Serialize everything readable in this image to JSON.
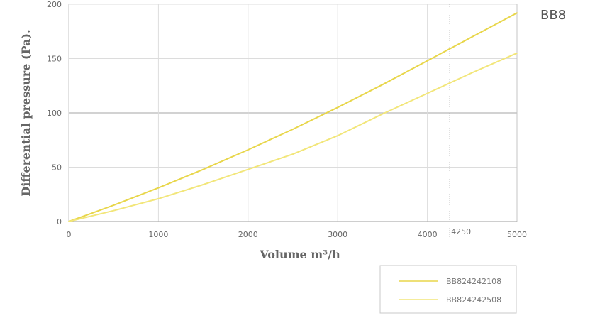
{
  "corner_label": "BB8",
  "chart_data": {
    "type": "line",
    "title": "",
    "xlabel": "Volume m³/h",
    "ylabel": "Differential pressure (Pa).",
    "xlim": [
      0,
      5000
    ],
    "ylim": [
      0,
      200
    ],
    "xticks": [
      0,
      1000,
      2000,
      3000,
      4000,
      5000
    ],
    "yticks": [
      0,
      50,
      100,
      150,
      200
    ],
    "grid": true,
    "reference_line": {
      "x": 4250,
      "label": "4250",
      "style": "dotted"
    },
    "legend_position": "bottom-right",
    "series": [
      {
        "name": "BB824242108",
        "color": "#e8d64a",
        "x": [
          0,
          500,
          1000,
          1500,
          2000,
          2500,
          3000,
          3500,
          4000,
          4500,
          5000
        ],
        "y": [
          0,
          15,
          31,
          48,
          66,
          85,
          105,
          126,
          148,
          170,
          192
        ]
      },
      {
        "name": "BB824242508",
        "color": "#f2e67a",
        "x": [
          0,
          500,
          1000,
          1500,
          2000,
          2500,
          3000,
          3500,
          4000,
          4500,
          5000
        ],
        "y": [
          0,
          10,
          21,
          34,
          48,
          62,
          79,
          99,
          118,
          137,
          155
        ]
      }
    ]
  }
}
